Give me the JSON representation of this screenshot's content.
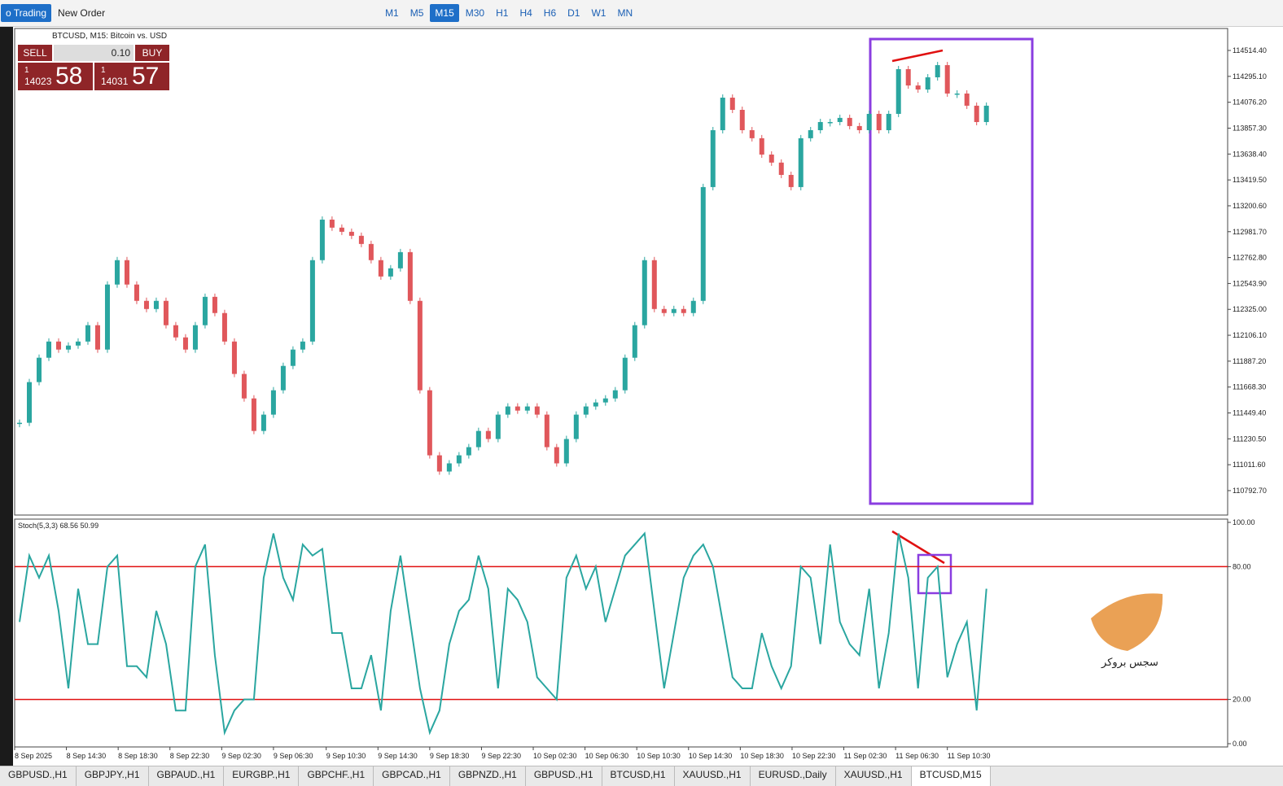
{
  "toolbar": {
    "algo_trading": "o Trading",
    "new_order": "New Order",
    "timeframes": [
      "M1",
      "M5",
      "M15",
      "M30",
      "H1",
      "H4",
      "H6",
      "D1",
      "W1",
      "MN"
    ]
  },
  "trade_panel": {
    "sell": "SELL",
    "volume": "0.10",
    "buy": "BUY",
    "bid_prefix_top": "1",
    "bid_prefix": "14023",
    "bid_big": "58",
    "ask_prefix_top": "1",
    "ask_prefix": "14031",
    "ask_big": "57"
  },
  "watermark": "سجس بروکر",
  "tabs": [
    "GBPUSD.,H1",
    "GBPJPY.,H1",
    "GBPAUD.,H1",
    "EURGBP.,H1",
    "GBPCHF.,H1",
    "GBPCAD.,H1",
    "GBPNZD.,H1",
    "GBPUSD.,H1",
    "BTCUSD,H1",
    "XAUUSD.,H1",
    "EURUSD.,Daily",
    "XAUUSD.,H1",
    "BTCUSD,M15"
  ],
  "chart_data": [
    {
      "type": "candlestick",
      "title": "BTCUSD, M15:  Bitcoin vs. USD",
      "up_color": "#2aa6a0",
      "down_color": "#e0575b",
      "values": [
        111366,
        111710,
        111916,
        112053,
        111985,
        112019,
        112053,
        112191,
        111985,
        112535,
        112741,
        112535,
        112397,
        112328,
        112397,
        112191,
        112088,
        111985,
        112191,
        112431,
        112294,
        112053,
        111779,
        111572,
        111297,
        111435,
        111641,
        111847,
        111985,
        112053,
        112741,
        113084,
        113016,
        112981,
        112947,
        112878,
        112741,
        112603,
        112672,
        112809,
        112397,
        111641,
        111091,
        110954,
        111023,
        111091,
        111160,
        111297,
        111229,
        111435,
        111504,
        111469,
        111504,
        111435,
        111160,
        111023,
        111229,
        111435,
        111504,
        111538,
        111572,
        111641,
        111916,
        112191,
        112741,
        112328,
        112294,
        112328,
        112294,
        112397,
        113359,
        113840,
        114115,
        114012,
        113840,
        113772,
        113634,
        113566,
        113462,
        113359,
        113772,
        113840,
        113909,
        113909,
        113944,
        113875,
        113840,
        113978,
        113840,
        113978,
        114356,
        114218,
        114184,
        114287,
        114390,
        114150,
        114150,
        114047,
        113909,
        114047
      ],
      "ylim": [
        110586,
        114700
      ],
      "yticks": [
        {
          "value": 114514.4,
          "label": "114514.40"
        },
        {
          "value": 114295.1,
          "label": "114295.10"
        },
        {
          "value": 114076.2,
          "label": "114076.20"
        },
        {
          "value": 113857.3,
          "label": "113857.30"
        },
        {
          "value": 113638.4,
          "label": "113638.40"
        },
        {
          "value": 113419.5,
          "label": "113419.50"
        },
        {
          "value": 113200.6,
          "label": "113200.60"
        },
        {
          "value": 112981.7,
          "label": "112981.70"
        },
        {
          "value": 112762.8,
          "label": "112762.80"
        },
        {
          "value": 112543.9,
          "label": "112543.90"
        },
        {
          "value": 112325,
          "label": "112325.00"
        },
        {
          "value": 112106.1,
          "label": "112106.10"
        },
        {
          "value": 111887.2,
          "label": "111887.20"
        },
        {
          "value": 111668.3,
          "label": "111668.30"
        },
        {
          "value": 111449.4,
          "label": "111449.40"
        },
        {
          "value": 111230.5,
          "label": "111230.50"
        },
        {
          "value": 111011.6,
          "label": "111011.60"
        },
        {
          "value": 110792.7,
          "label": "110792.70"
        }
      ],
      "xlim": [
        -0.5,
        123.7
      ],
      "xticks": [
        {
          "value": -0.5,
          "label": "8 Sep 2025"
        },
        {
          "value": 4.8,
          "label": "8 Sep 14:30"
        },
        {
          "value": 10.1,
          "label": "8 Sep 18:30"
        },
        {
          "value": 15.4,
          "label": "8 Sep 22:30"
        },
        {
          "value": 20.7,
          "label": "9 Sep 02:30"
        },
        {
          "value": 26,
          "label": "9 Sep 06:30"
        },
        {
          "value": 31.4,
          "label": "9 Sep 10:30"
        },
        {
          "value": 36.7,
          "label": "9 Sep 14:30"
        },
        {
          "value": 42,
          "label": "9 Sep 18:30"
        },
        {
          "value": 47.3,
          "label": "9 Sep 22:30"
        },
        {
          "value": 52.6,
          "label": "10 Sep 02:30"
        },
        {
          "value": 57.9,
          "label": "10 Sep 06:30"
        },
        {
          "value": 63.2,
          "label": "10 Sep 10:30"
        },
        {
          "value": 68.5,
          "label": "10 Sep 14:30"
        },
        {
          "value": 73.8,
          "label": "10 Sep 18:30"
        },
        {
          "value": 79.1,
          "label": "10 Sep 22:30"
        },
        {
          "value": 84.4,
          "label": "11 Sep 02:30"
        },
        {
          "value": 89.7,
          "label": "11 Sep 06:30"
        },
        {
          "value": 95,
          "label": "11 Sep 10:30"
        }
      ]
    },
    {
      "type": "line",
      "title": "Stoch(5,3,3) 68.56 50.99",
      "color": "#2aa6a0",
      "level_color": "#e01010",
      "values": [
        55,
        85,
        75,
        85,
        60,
        25,
        70,
        45,
        45,
        80,
        85,
        35,
        35,
        30,
        60,
        45,
        15,
        15,
        80,
        90,
        40,
        5,
        15,
        20,
        20,
        75,
        95,
        75,
        65,
        90,
        85,
        88,
        50,
        50,
        25,
        25,
        40,
        15,
        60,
        85,
        55,
        25,
        5,
        15,
        45,
        60,
        65,
        85,
        70,
        25,
        70,
        65,
        55,
        30,
        25,
        20,
        75,
        85,
        70,
        80,
        55,
        70,
        85,
        90,
        95,
        60,
        25,
        50,
        75,
        85,
        90,
        80,
        55,
        30,
        25,
        25,
        50,
        35,
        25,
        35,
        80,
        75,
        45,
        90,
        55,
        45,
        40,
        70,
        25,
        50,
        95,
        75,
        25,
        75,
        80,
        30,
        45,
        55,
        15,
        70
      ],
      "ylim": [
        0,
        100
      ],
      "yticks": [
        {
          "value": 100,
          "label": "100.00"
        },
        {
          "value": 80,
          "label": "80.00"
        },
        {
          "value": 20,
          "label": "20.00"
        },
        {
          "value": 0,
          "label": "0.00"
        }
      ],
      "levels": [
        20,
        80
      ]
    }
  ]
}
